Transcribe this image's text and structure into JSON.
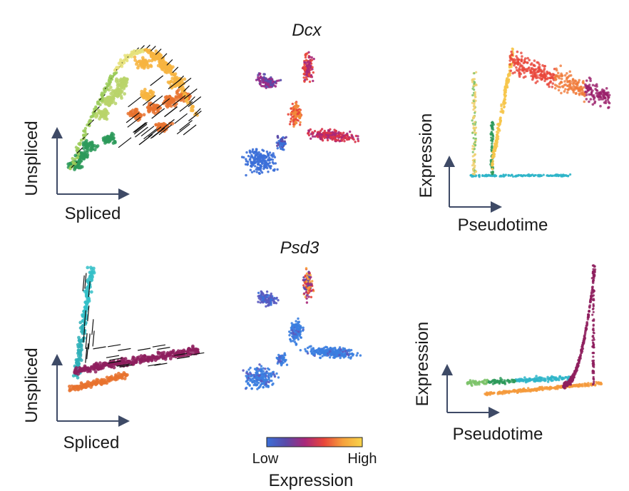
{
  "figure": {
    "panels": {
      "dcx_title": "Dcx",
      "psd3_title": "Psd3"
    },
    "phase_plot": {
      "xlabel": "Spliced",
      "ylabel": "Unspliced"
    },
    "trend_plot": {
      "xlabel": "Pseudotime",
      "ylabel": "Expression"
    },
    "colorbar": {
      "low_label": "Low",
      "high_label": "High",
      "title": "Expression",
      "colors": [
        "#3b6fd8",
        "#5a4aa8",
        "#a8287a",
        "#e8463a",
        "#f6a23c",
        "#f8d44a"
      ]
    }
  },
  "chart_data": [
    {
      "type": "scatter",
      "panel": "dcx-phase",
      "xlabel": "Spliced",
      "ylabel": "Unspliced",
      "series": [
        {
          "color": "#f7b440",
          "points": [
            [
              0.55,
              0.85
            ],
            [
              0.65,
              0.9
            ],
            [
              0.72,
              0.82
            ],
            [
              0.8,
              0.7
            ],
            [
              0.58,
              0.6
            ]
          ]
        },
        {
          "color": "#e8722e",
          "points": [
            [
              0.5,
              0.45
            ],
            [
              0.62,
              0.5
            ],
            [
              0.75,
              0.55
            ],
            [
              0.85,
              0.6
            ],
            [
              0.7,
              0.35
            ]
          ]
        },
        {
          "color": "#b8d46a",
          "points": [
            [
              0.25,
              0.45
            ],
            [
              0.3,
              0.55
            ],
            [
              0.35,
              0.62
            ],
            [
              0.4,
              0.7
            ]
          ]
        },
        {
          "color": "#2d9a5a",
          "points": [
            [
              0.05,
              0.05
            ],
            [
              0.1,
              0.12
            ],
            [
              0.15,
              0.2
            ],
            [
              0.3,
              0.25
            ]
          ]
        }
      ]
    },
    {
      "type": "scatter",
      "panel": "psd3-phase",
      "xlabel": "Spliced",
      "ylabel": "Unspliced",
      "series": [
        {
          "color": "#2f9ac4",
          "points": [
            [
              0.1,
              0.9
            ],
            [
              0.12,
              0.8
            ],
            [
              0.1,
              0.65
            ],
            [
              0.14,
              0.55
            ]
          ]
        },
        {
          "color": "#8e1f5e",
          "points": [
            [
              0.3,
              0.3
            ],
            [
              0.5,
              0.38
            ],
            [
              0.7,
              0.45
            ],
            [
              0.9,
              0.52
            ]
          ]
        },
        {
          "color": "#e8722e",
          "points": [
            [
              0.15,
              0.15
            ],
            [
              0.25,
              0.2
            ],
            [
              0.4,
              0.25
            ]
          ]
        },
        {
          "color": "#2d9a5a",
          "points": [
            [
              0.08,
              0.3
            ],
            [
              0.1,
              0.4
            ]
          ]
        }
      ]
    },
    {
      "type": "scatter",
      "panel": "dcx-trend",
      "xlabel": "Pseudotime",
      "ylabel": "Expression",
      "series": [
        {
          "color": "#f7b440",
          "points": [
            [
              0.3,
              0.2
            ],
            [
              0.35,
              0.6
            ],
            [
              0.4,
              0.85
            ]
          ]
        },
        {
          "color": "#e8463a",
          "points": [
            [
              0.45,
              0.8
            ],
            [
              0.6,
              0.75
            ],
            [
              0.75,
              0.8
            ]
          ]
        },
        {
          "color": "#e8722e",
          "points": [
            [
              0.8,
              0.55
            ],
            [
              0.9,
              0.5
            ],
            [
              1.0,
              0.45
            ]
          ]
        },
        {
          "color": "#2fb5c9",
          "points": [
            [
              0.2,
              0.05
            ],
            [
              0.5,
              0.05
            ],
            [
              0.85,
              0.05
            ]
          ]
        }
      ]
    },
    {
      "type": "scatter",
      "panel": "psd3-trend",
      "xlabel": "Pseudotime",
      "ylabel": "Expression",
      "series": [
        {
          "color": "#2fb5c9",
          "points": [
            [
              0.3,
              0.05
            ],
            [
              0.5,
              0.06
            ],
            [
              0.7,
              0.07
            ]
          ]
        },
        {
          "color": "#8e1f5e",
          "points": [
            [
              0.8,
              0.2
            ],
            [
              0.9,
              0.5
            ],
            [
              0.95,
              0.9
            ]
          ]
        },
        {
          "color": "#f49a3c",
          "points": [
            [
              0.5,
              0.02
            ],
            [
              0.8,
              0.05
            ],
            [
              1.0,
              0.1
            ]
          ]
        },
        {
          "color": "#7cc36a",
          "points": [
            [
              0.05,
              0.08
            ],
            [
              0.15,
              0.07
            ]
          ]
        }
      ]
    }
  ]
}
